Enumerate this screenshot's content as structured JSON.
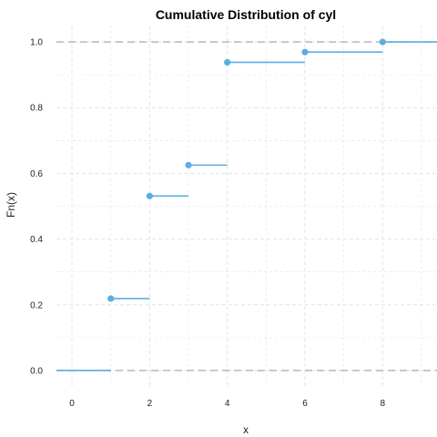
{
  "chart_data": {
    "type": "line",
    "subtype": "step-ecdf",
    "title": "Cumulative Distribution of cyl",
    "xlabel": "x",
    "ylabel": "Fn(x)",
    "xlim": [
      -0.4,
      9.4
    ],
    "ylim": [
      -0.05,
      1.05
    ],
    "x_ticks": [
      "0",
      "2",
      "4",
      "6",
      "8"
    ],
    "y_ticks": [
      "0.0",
      "0.2",
      "0.4",
      "0.6",
      "0.8",
      "1.0"
    ],
    "grid": true,
    "reference_lines": [
      0,
      1
    ],
    "steps": [
      {
        "x": -0.4,
        "x_end": 1,
        "y": 0,
        "point": false
      },
      {
        "x": 1,
        "x_end": 2,
        "y": 0.219,
        "point": true
      },
      {
        "x": 2,
        "x_end": 3,
        "y": 0.531,
        "point": true
      },
      {
        "x": 3,
        "x_end": 4,
        "y": 0.625,
        "point": true
      },
      {
        "x": 4,
        "x_end": 6,
        "y": 0.938,
        "point": true
      },
      {
        "x": 6,
        "x_end": 8,
        "y": 0.969,
        "point": true
      },
      {
        "x": 8,
        "x_end": 9.4,
        "y": 1.0,
        "point": true
      }
    ],
    "colors": {
      "step": "#5DADE2",
      "reference": "#B0B0B0",
      "grid": "#E3E3E3"
    }
  }
}
